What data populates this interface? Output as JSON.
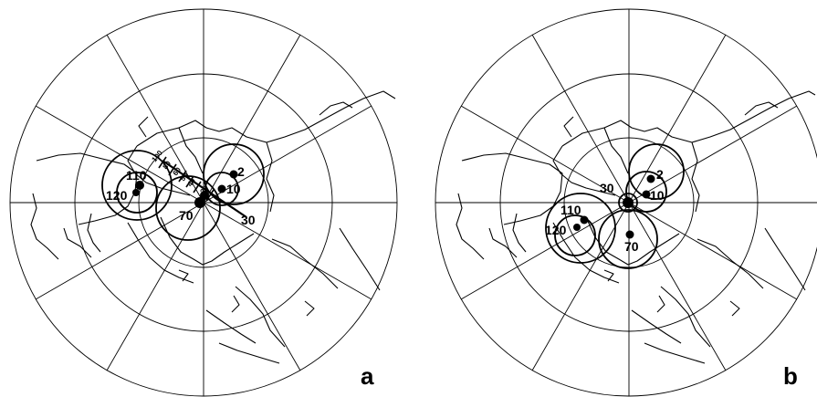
{
  "panels": [
    {
      "letter": "a",
      "poles": [
        {
          "age": "2"
        },
        {
          "age": "10"
        },
        {
          "age": "30"
        },
        {
          "age": "70"
        },
        {
          "age": "110"
        },
        {
          "age": "120"
        }
      ],
      "track_labels": [
        "100",
        "80",
        "60",
        "50",
        "40",
        "20"
      ]
    },
    {
      "letter": "b",
      "poles": [
        {
          "age": "2"
        },
        {
          "age": "10"
        },
        {
          "age": "30"
        },
        {
          "age": "70"
        },
        {
          "age": "110"
        },
        {
          "age": "120"
        }
      ]
    }
  ]
}
